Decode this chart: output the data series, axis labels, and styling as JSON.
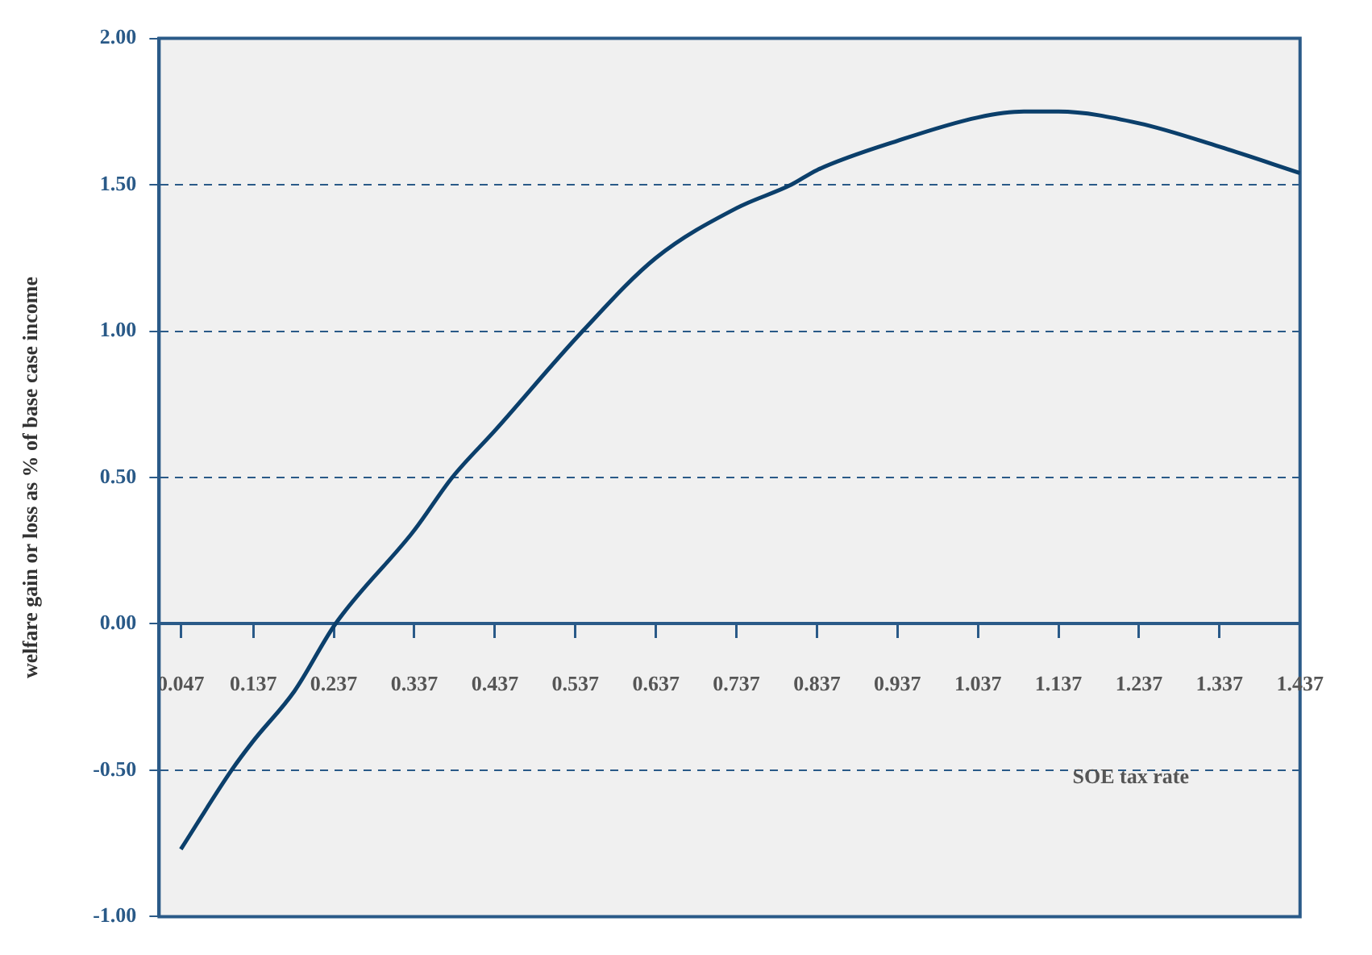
{
  "chart_data": {
    "type": "line",
    "xlabel": "SOE tax rate",
    "ylabel": "welfare gain or loss as % of base case income",
    "x": [
      0.047,
      0.11,
      0.137,
      0.188,
      0.239,
      0.337,
      0.384,
      0.437,
      0.546,
      0.637,
      0.737,
      0.805,
      0.837,
      0.937,
      1.037,
      1.094,
      1.137,
      1.237,
      1.337,
      1.437
    ],
    "series": [
      {
        "color": "#0b3f6b",
        "values": [
          -0.77,
          -0.5,
          -0.4,
          -0.23,
          0.0,
          0.32,
          0.5,
          0.66,
          1.0,
          1.25,
          1.42,
          1.5,
          1.55,
          1.65,
          1.73,
          1.75,
          1.75,
          1.71,
          1.63,
          1.54
        ]
      }
    ],
    "xlim": [
      0.02,
      1.437
    ],
    "xticks": [
      0.047,
      0.137,
      0.237,
      0.337,
      0.437,
      0.537,
      0.637,
      0.737,
      0.837,
      0.937,
      1.037,
      1.137,
      1.237,
      1.337,
      1.437
    ],
    "ylim": [
      -1,
      2
    ],
    "yticks": [
      {
        "value": -1,
        "label": "-1.00"
      },
      {
        "value": -0.5,
        "label": "-0.50"
      },
      {
        "value": 0,
        "label": "0.00"
      },
      {
        "value": 0.5,
        "label": "0.50"
      },
      {
        "value": 1,
        "label": "1.00"
      },
      {
        "value": 1.5,
        "label": "1.50"
      },
      {
        "value": 2,
        "label": "2.00"
      }
    ],
    "grid": "y",
    "legend": false,
    "marker": "none",
    "line_style": "solid"
  }
}
